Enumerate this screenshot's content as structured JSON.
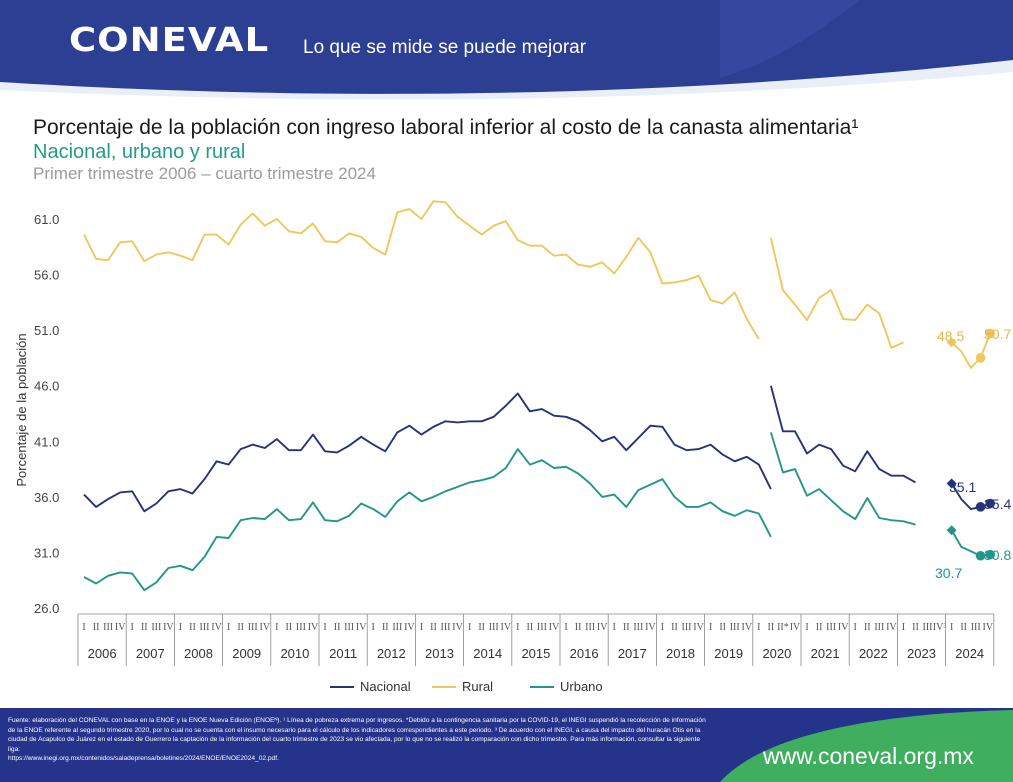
{
  "header": {
    "logo": "CONEVAL",
    "tagline": "Lo que se mide se puede mejorar"
  },
  "titles": {
    "title": "Porcentaje de la población con ingreso laboral inferior al costo de la canasta alimentaria¹",
    "subtitle": "Nacional, urbano y rural",
    "period": "Primer trimestre 2006 – cuarto trimestre 2024"
  },
  "colors": {
    "nacional": "#26337a",
    "rural": "#f0c75e",
    "urbano": "#21978a",
    "header_blue": "#2c3f93",
    "footer_blue": "#25348a",
    "footer_green": "#3fae5e"
  },
  "chart_data": {
    "type": "line",
    "ylabel": "Porcentaje de la población",
    "ylim": [
      26.0,
      61.0
    ],
    "yticks": [
      "61.0",
      "56.0",
      "51.0",
      "46.0",
      "41.0",
      "36.0",
      "31.0",
      "26.0"
    ],
    "years": [
      "2006",
      "2007",
      "2008",
      "2009",
      "2010",
      "2011",
      "2012",
      "2013",
      "2014",
      "2015",
      "2016",
      "2017",
      "2018",
      "2019",
      "2020",
      "2021",
      "2022",
      "2023",
      "2024"
    ],
    "quarter_marks": [
      "I",
      "II",
      "III",
      "IV"
    ],
    "quarter_overrides": [
      {
        "year": "2020",
        "quarter": 2,
        "text": "II*"
      },
      {
        "year": "2023",
        "quarter": 3,
        "text": "IV³"
      }
    ],
    "legend": [
      "Nacional",
      "Rural",
      "Urbano"
    ],
    "series": [
      {
        "name": "Nacional",
        "color": "#26337a",
        "segments": [
          {
            "start": 0,
            "values": [
              36.2,
              35.1,
              35.8,
              36.4,
              36.5,
              34.7,
              35.4,
              36.5,
              36.7,
              36.3,
              37.6,
              39.2,
              38.9,
              40.3,
              40.7,
              40.4,
              41.2,
              40.2,
              40.2,
              41.6,
              40.1,
              40.0,
              40.6,
              41.4,
              40.7,
              40.1,
              41.8,
              42.4,
              41.6,
              42.3,
              42.8,
              42.7,
              42.8,
              42.8,
              43.2,
              44.2,
              45.3,
              43.7,
              43.9,
              43.3,
              43.2,
              42.8,
              42.0,
              41.0,
              41.4,
              40.2,
              41.3,
              42.4,
              42.3,
              40.7,
              40.2,
              40.3,
              40.7,
              39.8,
              39.2,
              39.6,
              38.9,
              36.7
            ]
          },
          {
            "start": 57,
            "values": [
              46.0,
              41.9,
              41.9,
              39.9,
              40.7,
              40.3,
              38.8,
              38.3,
              40.1,
              38.5,
              37.9,
              37.9,
              37.3
            ]
          }
        ],
        "markers": [
          {
            "index": 72,
            "value": 37.2,
            "shape": "diamond"
          },
          {
            "index": 74,
            "value": 35.1,
            "shape": "circle"
          },
          {
            "index": 75,
            "value": 35.4,
            "shape": "circle"
          }
        ],
        "tail": {
          "start": 72,
          "values": [
            37.2,
            35.8,
            34.9,
            35.1,
            35.4
          ]
        },
        "data_labels": [
          {
            "text": "35.1",
            "index": 74,
            "value": 35.1
          },
          {
            "text": "35.4",
            "index": 75,
            "value": 35.4
          }
        ]
      },
      {
        "name": "Rural",
        "color": "#f0c75e",
        "segments": [
          {
            "start": 0,
            "values": [
              59.6,
              57.4,
              57.3,
              58.9,
              59.0,
              57.2,
              57.8,
              58.0,
              57.7,
              57.3,
              59.6,
              59.6,
              58.7,
              60.5,
              61.5,
              60.4,
              61.0,
              59.9,
              59.7,
              60.6,
              59.0,
              58.9,
              59.7,
              59.4,
              58.4,
              57.8,
              61.6,
              61.9,
              61.0,
              62.6,
              62.5,
              61.2,
              60.4,
              59.6,
              60.4,
              60.8,
              59.1,
              58.6,
              58.6,
              57.7,
              57.8,
              56.9,
              56.7,
              57.1,
              56.1,
              57.6,
              59.3,
              58.0,
              55.2,
              55.3,
              55.5,
              55.9,
              53.7,
              53.4,
              54.4,
              52.0,
              50.2
            ]
          },
          {
            "start": 57,
            "values": [
              59.3,
              54.6,
              53.3,
              51.9,
              53.9,
              54.6,
              52.0,
              51.9,
              53.3,
              52.5,
              49.4,
              49.9
            ]
          }
        ],
        "markers": [
          {
            "index": 72,
            "value": 49.9,
            "shape": "diamond"
          },
          {
            "index": 74,
            "value": 48.5,
            "shape": "circle"
          },
          {
            "index": 75,
            "value": 50.7,
            "shape": "circle"
          }
        ],
        "tail": {
          "start": 72,
          "values": [
            49.9,
            49.1,
            47.6,
            48.5,
            50.7
          ]
        },
        "data_labels": [
          {
            "text": "48.5",
            "index": 74,
            "value": 48.5
          },
          {
            "text": "50.7",
            "index": 75,
            "value": 50.7
          }
        ]
      },
      {
        "name": "Urbano",
        "color": "#21978a",
        "segments": [
          {
            "start": 0,
            "values": [
              28.8,
              28.2,
              28.9,
              29.2,
              29.1,
              27.6,
              28.3,
              29.6,
              29.8,
              29.4,
              30.6,
              32.4,
              32.3,
              33.9,
              34.1,
              34.0,
              34.9,
              33.9,
              34.0,
              35.5,
              33.9,
              33.8,
              34.3,
              35.4,
              34.9,
              34.2,
              35.6,
              36.4,
              35.6,
              36.0,
              36.5,
              36.9,
              37.3,
              37.5,
              37.8,
              38.6,
              40.3,
              38.9,
              39.3,
              38.6,
              38.7,
              38.1,
              37.2,
              36.0,
              36.2,
              35.1,
              36.6,
              37.1,
              37.6,
              36.0,
              35.1,
              35.1,
              35.5,
              34.7,
              34.3,
              34.8,
              34.5,
              32.4
            ]
          },
          {
            "start": 57,
            "values": [
              41.8,
              38.2,
              38.5,
              36.1,
              36.7,
              35.7,
              34.7,
              34.0,
              35.9,
              34.1,
              33.9,
              33.8,
              33.5
            ]
          }
        ],
        "markers": [
          {
            "index": 72,
            "value": 33.0,
            "shape": "diamond"
          },
          {
            "index": 74,
            "value": 30.7,
            "shape": "circle"
          },
          {
            "index": 75,
            "value": 30.8,
            "shape": "circle"
          }
        ],
        "tail": {
          "start": 72,
          "values": [
            33.0,
            31.5,
            31.1,
            30.7,
            30.8
          ]
        },
        "data_labels": [
          {
            "text": "30.7",
            "index": 74,
            "value": 30.7
          },
          {
            "text": "30.8",
            "index": 75,
            "value": 30.8
          }
        ]
      }
    ]
  },
  "footer": {
    "note": "Fuente: elaboración del CONEVAL con base en la ENOE y la ENOE Nueva Edición (ENOEᴺ). ¹ Línea de pobreza extrema por ingresos. *Debido a la contingencia sanitaria por la COVID-19, el INEGI suspendió la recolección de información de la ENOE referente al segundo trimestre 2020, por lo cual no se cuenta con el insumo necesario para el cálculo de los indicadores correspondientes a este periodo. ³ De acuerdo con el INEGI, a causa del impacto del huracán Otis en la ciudad de Acapulco de Juárez en el estado de Guerrero la captación de la información del cuarto trimestre de 2023 se vio afectada, por lo que no se realizó la comparación con dicho trimestre. Para más información, consultar la siguiente liga:",
    "link": "https://www.inegi.org.mx/contenidos/saladeprensa/boletines/2024/ENOE/ENOE2024_02.pdf.",
    "site": "www.coneval.org.mx"
  }
}
